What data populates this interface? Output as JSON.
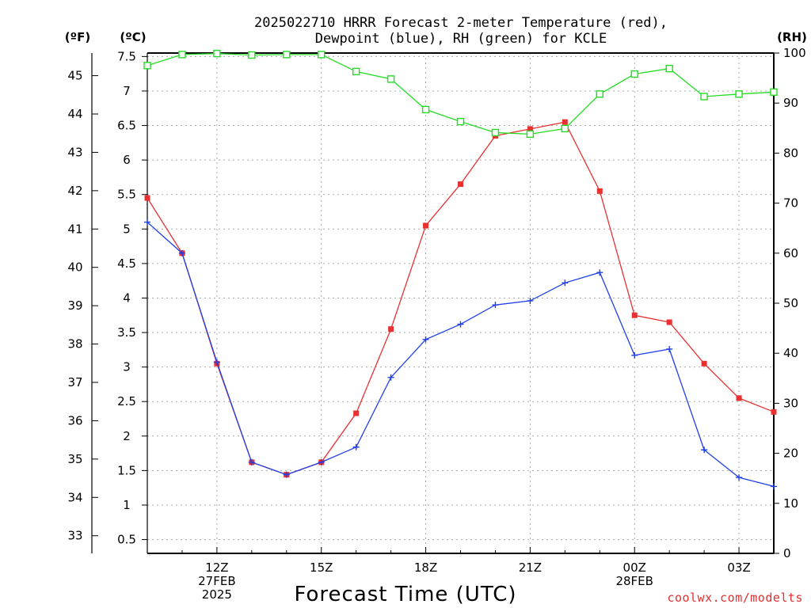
{
  "chart_data": {
    "type": "line",
    "title_lines": [
      "2025022710 HRRR Forecast 2-meter Temperature (red),",
      "Dewpoint (blue), RH (green) for KCLE"
    ],
    "xlabel": "Forecast Time (UTC)",
    "units": {
      "fahrenheit": "(ºF)",
      "celsius": "(ºC)",
      "rh": "(RH)"
    },
    "x_hours": [
      10,
      11,
      12,
      13,
      14,
      15,
      16,
      17,
      18,
      19,
      20,
      21,
      22,
      23,
      24,
      25,
      26,
      27,
      28
    ],
    "xlim": [
      10,
      28
    ],
    "x_ticks": [
      {
        "hour": 12,
        "lines": [
          "12Z",
          "27FEB",
          "2025"
        ]
      },
      {
        "hour": 15,
        "lines": [
          "15Z"
        ]
      },
      {
        "hour": 18,
        "lines": [
          "18Z"
        ]
      },
      {
        "hour": 21,
        "lines": [
          "21Z"
        ]
      },
      {
        "hour": 24,
        "lines": [
          "00Z",
          "28FEB"
        ]
      },
      {
        "hour": 27,
        "lines": [
          "03Z"
        ]
      }
    ],
    "celsius_axis": {
      "ylim": [
        0.3,
        7.55
      ],
      "ticks": [
        0.5,
        1,
        1.5,
        2,
        2.5,
        3,
        3.5,
        4,
        4.5,
        5,
        5.5,
        6,
        6.5,
        7,
        7.5
      ],
      "tick_labels": [
        "0.5",
        "1",
        "1.5",
        "2",
        "2.5",
        "3",
        "3.5",
        "4",
        "4.5",
        "5",
        "5.5",
        "6",
        "6.5",
        "7",
        "7.5"
      ]
    },
    "fahrenheit_axis": {
      "ticks": [
        33,
        34,
        35,
        36,
        37,
        38,
        39,
        40,
        41,
        42,
        43,
        44,
        45
      ],
      "tick_labels": [
        "33",
        "34",
        "35",
        "36",
        "37",
        "38",
        "39",
        "40",
        "41",
        "42",
        "43",
        "44",
        "45"
      ]
    },
    "rh_axis": {
      "ylim": [
        0,
        100
      ],
      "ticks": [
        0,
        10,
        20,
        30,
        40,
        50,
        60,
        70,
        80,
        90,
        100
      ],
      "tick_labels": [
        "0",
        "10",
        "20",
        "30",
        "40",
        "50",
        "60",
        "70",
        "80",
        "90",
        "100"
      ]
    },
    "series": [
      {
        "id": "temperature",
        "axis": "celsius",
        "color": "#e83030",
        "marker": "filled-square",
        "values": [
          5.45,
          4.65,
          3.05,
          1.62,
          1.44,
          1.62,
          2.33,
          3.55,
          5.05,
          5.65,
          6.35,
          6.45,
          6.55,
          5.55,
          3.75,
          3.65,
          3.05,
          2.55,
          2.35
        ]
      },
      {
        "id": "dewpoint",
        "axis": "celsius",
        "color": "#2040e8",
        "marker": "plus",
        "values": [
          5.1,
          4.65,
          3.07,
          1.62,
          1.44,
          1.62,
          1.84,
          2.85,
          3.4,
          3.62,
          3.9,
          3.96,
          4.22,
          4.37,
          3.17,
          3.26,
          1.8,
          1.4,
          1.27
        ]
      },
      {
        "id": "rh",
        "axis": "rh",
        "color": "#22dd22",
        "marker": "open-square",
        "values": [
          97.5,
          99.7,
          99.9,
          99.6,
          99.7,
          99.7,
          96.3,
          94.8,
          88.7,
          86.3,
          84.1,
          83.8,
          84.9,
          91.8,
          95.8,
          96.9,
          91.3,
          91.8,
          92.2
        ]
      }
    ],
    "grid": true,
    "credit": "coolwx.com/modelts"
  }
}
